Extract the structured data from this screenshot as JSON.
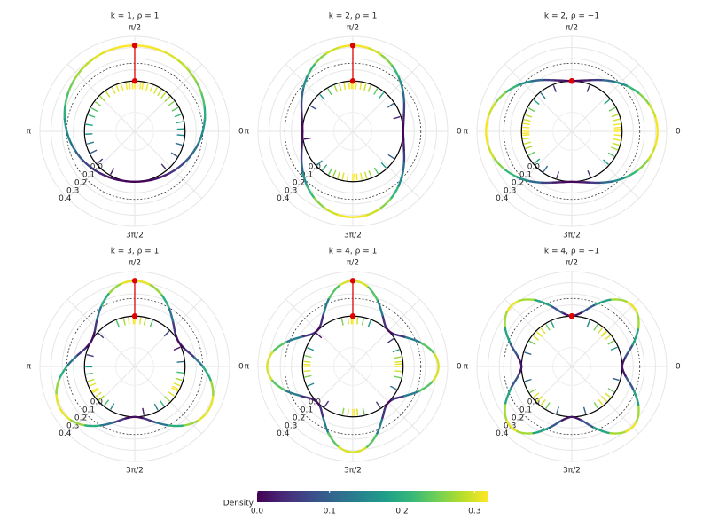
{
  "chart_data": [
    {
      "type": "polar",
      "title": "k = 1,  ρ = 1",
      "x": [
        0,
        0.175,
        0.349,
        0.524,
        0.698,
        0.873,
        1.047,
        1.222,
        1.396,
        1.571,
        1.745,
        1.92,
        2.094,
        2.269,
        2.443,
        2.618,
        2.793,
        2.967,
        3.142,
        3.316,
        3.491,
        3.665,
        3.84,
        4.014,
        4.189,
        4.363,
        4.538,
        4.712,
        4.887,
        5.061,
        5.236,
        5.411,
        5.585,
        5.76,
        5.934,
        6.109
      ],
      "values": [
        0.159,
        0.187,
        0.214,
        0.239,
        0.261,
        0.281,
        0.297,
        0.309,
        0.316,
        0.318,
        0.316,
        0.309,
        0.297,
        0.281,
        0.261,
        0.239,
        0.214,
        0.187,
        0.159,
        0.132,
        0.105,
        0.08,
        0.057,
        0.037,
        0.021,
        0.01,
        0.002,
        0,
        0.002,
        0.01,
        0.021,
        0.037,
        0.057,
        0.08,
        0.105,
        0.132
      ],
      "samples": [
        1.57,
        1.45,
        1.68,
        1.3,
        1.85,
        1.2,
        1.95,
        1.1,
        2.05,
        1,
        2.2,
        0.9,
        2.35,
        0.78,
        2.5,
        0.65,
        2.65,
        0.5,
        2.8,
        0.35,
        3,
        0.2,
        3.2,
        0.05,
        3.4,
        6.2,
        3.6,
        6,
        3.85,
        5.75,
        4.2,
        5.4,
        1.52,
        1.62,
        1.4,
        1.75
      ],
      "marker": {
        "theta": 1.571,
        "density": 0.318,
        "color": "#e00000"
      },
      "reference": 0.159,
      "rlim": [
        -0.452,
        0.4
      ],
      "rticks": [
        {
          "value": 0,
          "label": "0.0"
        },
        0.1,
        0.2,
        0.3,
        0.4
      ],
      "xticks": [
        0,
        {
          "value": 1.571,
          "label": "π/2"
        },
        {
          "value": 3.142,
          "label": "π"
        },
        {
          "value": 4.712,
          "label": "3π/2"
        }
      ]
    },
    {
      "type": "polar",
      "title": "k = 2,  ρ = 1",
      "x": [
        0,
        0.175,
        0.349,
        0.524,
        0.698,
        0.873,
        1.047,
        1.222,
        1.396,
        1.571,
        1.745,
        1.92,
        2.094,
        2.269,
        2.443,
        2.618,
        2.793,
        2.967,
        3.142,
        3.316,
        3.491,
        3.665,
        3.84,
        4.014,
        4.189,
        4.363,
        4.538,
        4.712,
        4.887,
        5.061,
        5.236,
        5.411,
        5.585,
        5.76,
        5.934,
        6.109
      ],
      "values": [
        0,
        0.01,
        0.037,
        0.08,
        0.132,
        0.187,
        0.239,
        0.281,
        0.309,
        0.318,
        0.309,
        0.281,
        0.239,
        0.187,
        0.132,
        0.08,
        0.037,
        0.01,
        0,
        0.01,
        0.037,
        0.08,
        0.132,
        0.187,
        0.239,
        0.281,
        0.309,
        0.318,
        0.309,
        0.281,
        0.239,
        0.187,
        0.132,
        0.08,
        0.037,
        0.01
      ],
      "samples": [
        1.57,
        1.5,
        1.65,
        1.4,
        1.75,
        1.3,
        1.85,
        1.2,
        1.95,
        1.05,
        2.1,
        0.9,
        2.3,
        0.6,
        2.6,
        4.71,
        4.6,
        4.8,
        4.5,
        4.9,
        4.4,
        5,
        4.3,
        5.1,
        4.2,
        5.25,
        4.05,
        5.45,
        3.9,
        5.7,
        0.3,
        3.3,
        1.6,
        4.75
      ],
      "marker": {
        "theta": 1.571,
        "density": 0.318,
        "color": "#e00000"
      },
      "reference": 0.159,
      "rlim": [
        -0.452,
        0.4
      ],
      "rticks": [
        {
          "value": 0,
          "label": "0.0"
        },
        0.1,
        0.2,
        0.3,
        0.4
      ],
      "xticks": [
        0,
        {
          "value": 1.571,
          "label": "π/2"
        },
        {
          "value": 3.142,
          "label": "π"
        },
        {
          "value": 4.712,
          "label": "3π/2"
        }
      ]
    },
    {
      "type": "polar",
      "title": "k = 2,  ρ = −1",
      "x": [
        0,
        0.175,
        0.349,
        0.524,
        0.698,
        0.873,
        1.047,
        1.222,
        1.396,
        1.571,
        1.745,
        1.92,
        2.094,
        2.269,
        2.443,
        2.618,
        2.793,
        2.967,
        3.142,
        3.316,
        3.491,
        3.665,
        3.84,
        4.014,
        4.189,
        4.363,
        4.538,
        4.712,
        4.887,
        5.061,
        5.236,
        5.411,
        5.585,
        5.76,
        5.934,
        6.109
      ],
      "values": [
        0.318,
        0.309,
        0.281,
        0.239,
        0.187,
        0.132,
        0.08,
        0.037,
        0.01,
        0,
        0.01,
        0.037,
        0.08,
        0.132,
        0.187,
        0.239,
        0.281,
        0.309,
        0.318,
        0.309,
        0.281,
        0.239,
        0.187,
        0.132,
        0.08,
        0.037,
        0.01,
        0,
        0.01,
        0.037,
        0.08,
        0.132,
        0.187,
        0.239,
        0.281,
        0.309
      ],
      "samples": [
        0,
        0.08,
        6.2,
        0.15,
        6.1,
        0.25,
        6,
        0.35,
        5.9,
        0.5,
        5.75,
        0.7,
        5.55,
        3.14,
        3.06,
        3.22,
        2.98,
        3.3,
        2.9,
        3.4,
        2.8,
        3.5,
        2.65,
        3.65,
        2.45,
        3.85,
        2.25,
        4.1,
        1.2,
        1.95,
        4.4,
        5.1,
        0.04,
        3.18
      ],
      "marker": {
        "theta": 1.571,
        "density": 0,
        "color": "#e00000"
      },
      "reference": 0.159,
      "rlim": [
        -0.452,
        0.4
      ],
      "rticks": [
        {
          "value": 0,
          "label": "0.0"
        },
        0.1,
        0.2,
        0.3,
        0.4
      ],
      "xticks": [
        0,
        {
          "value": 1.571,
          "label": "π/2"
        },
        {
          "value": 3.142,
          "label": "π"
        },
        {
          "value": 4.712,
          "label": "3π/2"
        }
      ]
    },
    {
      "type": "polar",
      "title": "k = 3,  ρ = 1",
      "x": [
        0,
        0.175,
        0.349,
        0.524,
        0.698,
        0.873,
        1.047,
        1.222,
        1.396,
        1.571,
        1.745,
        1.92,
        2.094,
        2.269,
        2.443,
        2.618,
        2.793,
        2.967,
        3.142,
        3.316,
        3.491,
        3.665,
        3.84,
        4.014,
        4.189,
        4.363,
        4.538,
        4.712,
        4.887,
        5.061,
        5.236,
        5.411,
        5.585,
        5.76,
        5.934,
        6.109
      ],
      "values": [
        0.159,
        0.08,
        0.021,
        0,
        0.021,
        0.08,
        0.159,
        0.239,
        0.297,
        0.318,
        0.297,
        0.239,
        0.159,
        0.08,
        0.021,
        0,
        0.021,
        0.08,
        0.159,
        0.239,
        0.297,
        0.318,
        0.297,
        0.239,
        0.159,
        0.08,
        0.021,
        0,
        0.021,
        0.08,
        0.159,
        0.239,
        0.297,
        0.318,
        0.297,
        0.239
      ],
      "samples": [
        1.57,
        1.45,
        1.7,
        1.35,
        1.8,
        1.2,
        1.95,
        3.67,
        3.55,
        3.8,
        3.45,
        3.9,
        3.3,
        4.05,
        3.15,
        4.2,
        5.76,
        5.64,
        5.88,
        5.5,
        6,
        5.35,
        6.15,
        5.2,
        0.1,
        4.9,
        0.4,
        2.4,
        0.8,
        2.9,
        1.6,
        3.7,
        5.8
      ],
      "marker": {
        "theta": 1.571,
        "density": 0.318,
        "color": "#e00000"
      },
      "reference": 0.159,
      "rlim": [
        -0.452,
        0.4
      ],
      "rticks": [
        {
          "value": 0,
          "label": "0.0"
        },
        0.1,
        0.2,
        0.3,
        0.4
      ],
      "xticks": [
        0,
        {
          "value": 1.571,
          "label": "π/2"
        },
        {
          "value": 3.142,
          "label": "π"
        },
        {
          "value": 4.712,
          "label": "3π/2"
        }
      ]
    },
    {
      "type": "polar",
      "title": "k = 4,  ρ = 1",
      "x": [
        0,
        0.175,
        0.349,
        0.524,
        0.698,
        0.873,
        1.047,
        1.222,
        1.396,
        1.571,
        1.745,
        1.92,
        2.094,
        2.269,
        2.443,
        2.618,
        2.793,
        2.967,
        3.142,
        3.316,
        3.491,
        3.665,
        3.84,
        4.014,
        4.189,
        4.363,
        4.538,
        4.712,
        4.887,
        5.061,
        5.236,
        5.411,
        5.585,
        5.76,
        5.934,
        6.109
      ],
      "values": [
        0.318,
        0.281,
        0.187,
        0.08,
        0.01,
        0.01,
        0.08,
        0.187,
        0.281,
        0.318,
        0.281,
        0.187,
        0.08,
        0.01,
        0.01,
        0.08,
        0.187,
        0.281,
        0.318,
        0.281,
        0.187,
        0.08,
        0.01,
        0.01,
        0.08,
        0.187,
        0.281,
        0.318,
        0.281,
        0.187,
        0.08,
        0.01,
        0.01,
        0.08,
        0.187,
        0.281
      ],
      "samples": [
        0,
        0.1,
        6.18,
        0.2,
        6.05,
        0.35,
        1.57,
        1.47,
        1.67,
        1.35,
        1.8,
        3.14,
        3.04,
        3.24,
        2.92,
        3.36,
        4.71,
        4.61,
        4.81,
        4.5,
        4.95,
        0.6,
        5.8,
        2.4,
        2.75,
        3.55,
        4.1,
        5.3,
        1.2,
        0.05,
        3.1,
        4.75,
        1.6
      ],
      "marker": {
        "theta": 1.571,
        "density": 0.318,
        "color": "#e00000"
      },
      "reference": 0.159,
      "rlim": [
        -0.452,
        0.4
      ],
      "rticks": [
        {
          "value": 0,
          "label": "0.0"
        },
        0.1,
        0.2,
        0.3,
        0.4
      ],
      "xticks": [
        0,
        {
          "value": 1.571,
          "label": "π/2"
        },
        {
          "value": 3.142,
          "label": "π"
        },
        {
          "value": 4.712,
          "label": "3π/2"
        }
      ]
    },
    {
      "type": "polar",
      "title": "k = 4,  ρ = −1",
      "x": [
        0,
        0.175,
        0.349,
        0.524,
        0.698,
        0.873,
        1.047,
        1.222,
        1.396,
        1.571,
        1.745,
        1.92,
        2.094,
        2.269,
        2.443,
        2.618,
        2.793,
        2.967,
        3.142,
        3.316,
        3.491,
        3.665,
        3.84,
        4.014,
        4.189,
        4.363,
        4.538,
        4.712,
        4.887,
        5.061,
        5.236,
        5.411,
        5.585,
        5.76,
        5.934,
        6.109
      ],
      "values": [
        0,
        0.037,
        0.132,
        0.239,
        0.309,
        0.309,
        0.239,
        0.132,
        0.037,
        0,
        0.037,
        0.132,
        0.239,
        0.309,
        0.309,
        0.239,
        0.132,
        0.037,
        0,
        0.037,
        0.132,
        0.239,
        0.309,
        0.309,
        0.239,
        0.132,
        0.037,
        0,
        0.037,
        0.132,
        0.239,
        0.309,
        0.309,
        0.239,
        0.132,
        0.037
      ],
      "samples": [
        0.785,
        0.68,
        0.9,
        0.55,
        1.02,
        2.356,
        2.25,
        2.47,
        2.12,
        2.6,
        3.927,
        3.82,
        4.04,
        3.7,
        4.16,
        5.498,
        5.39,
        5.61,
        5.27,
        5.74,
        0.4,
        1.2,
        2,
        2.85,
        3.45,
        4.4,
        5,
        6,
        0.8,
        2.36,
        3.93,
        5.5
      ],
      "marker": {
        "theta": 1.571,
        "density": 0,
        "color": "#e00000"
      },
      "reference": 0.159,
      "rlim": [
        -0.452,
        0.4
      ],
      "rticks": [
        {
          "value": 0,
          "label": "0.0"
        },
        0.1,
        0.2,
        0.3,
        0.4
      ],
      "xticks": [
        0,
        {
          "value": 1.571,
          "label": "π/2"
        },
        {
          "value": 3.142,
          "label": "π"
        },
        {
          "value": 4.712,
          "label": "3π/2"
        }
      ]
    }
  ],
  "colorbar": {
    "label": "Density",
    "lim": [
      0,
      0.318
    ],
    "ticks": [
      {
        "value": 0,
        "label": "0.0"
      },
      0.1,
      0.2,
      0.3
    ],
    "colormap": [
      "#440154",
      "#482878",
      "#3e4989",
      "#31688e",
      "#26828e",
      "#1f9e89",
      "#35b779",
      "#6ece58",
      "#b5de2b",
      "#fde725"
    ]
  }
}
